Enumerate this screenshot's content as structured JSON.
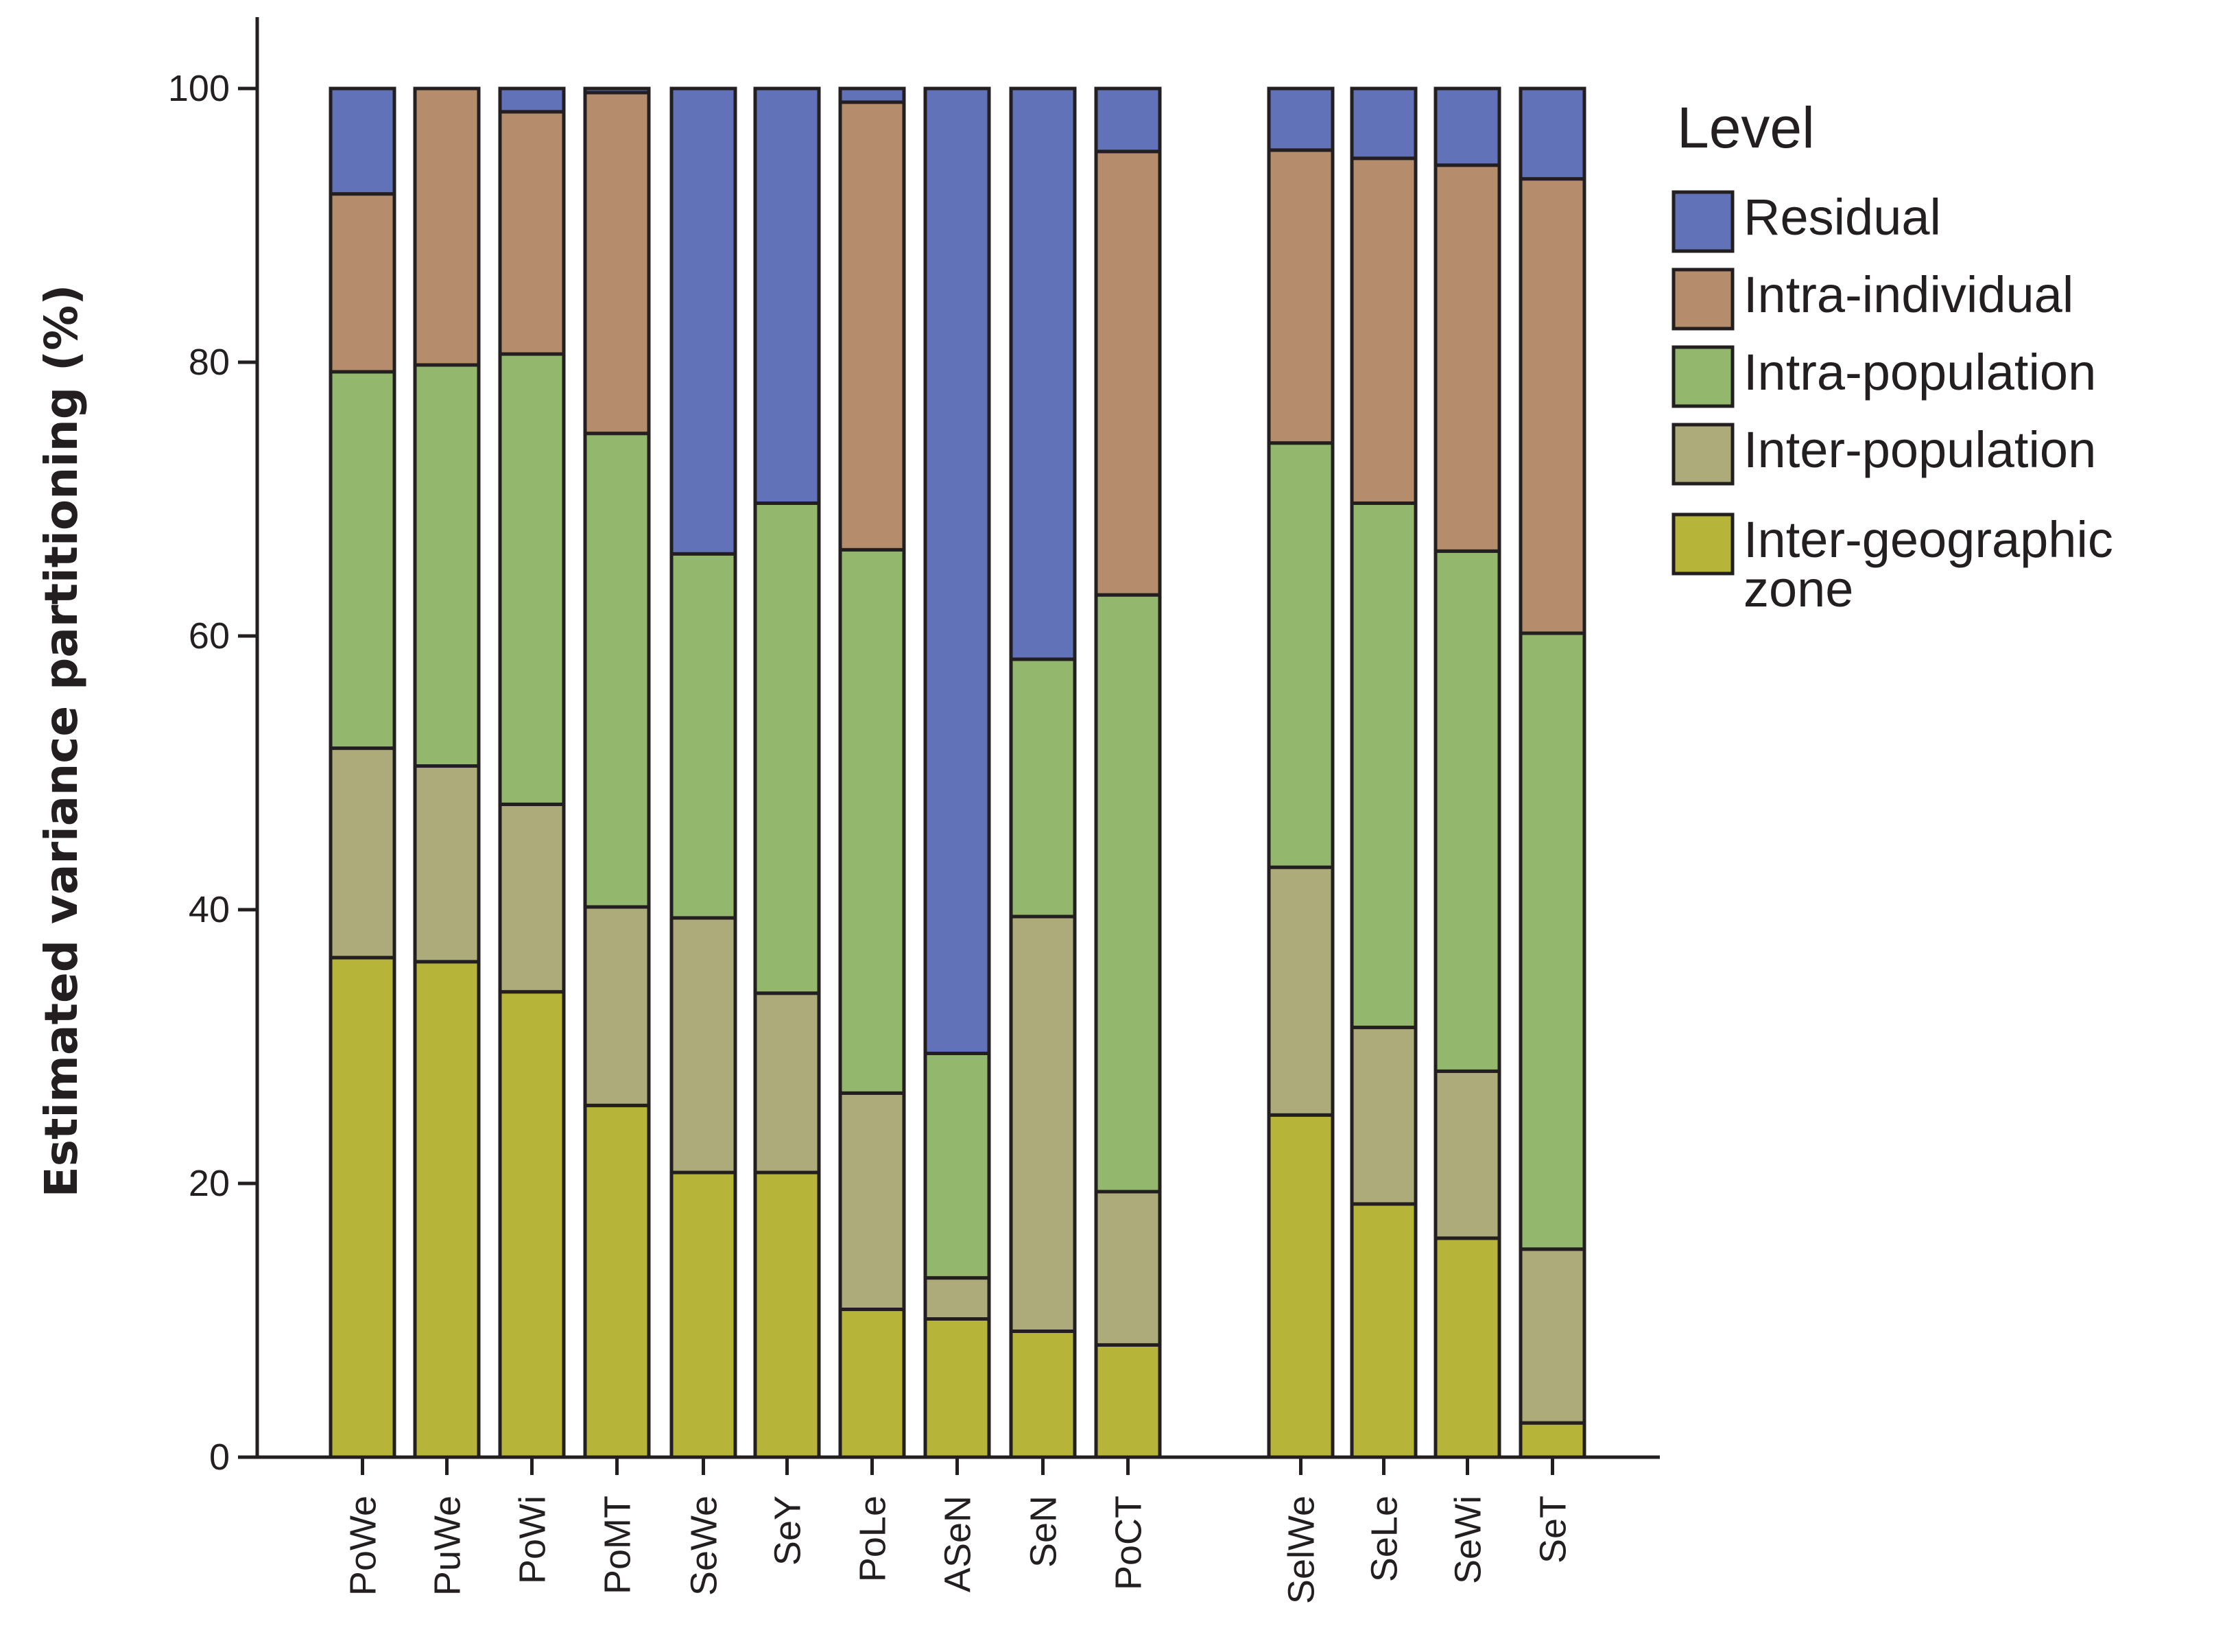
{
  "chart_data": {
    "type": "bar",
    "stacked": true,
    "title": "",
    "xlabel": "",
    "ylabel": "Estimated variance partitioning (%)",
    "ylim": [
      0,
      100
    ],
    "yticks": [
      "0",
      "20",
      "40",
      "60",
      "80",
      "100"
    ],
    "grid": false,
    "legend_position": "right",
    "legend_title": "Level",
    "categories": [
      "PoWe",
      "PuWe",
      "PoWi",
      "PoMT",
      "SeWe",
      "SeY",
      "PoLe",
      "ASeN",
      "SeN",
      "PoCT",
      "SelWe",
      "SeLe",
      "SeWi",
      "SeT"
    ],
    "group_break_after": "PoCT",
    "series": [
      {
        "name": "Inter-geographic zone",
        "legend_lines": [
          "Inter-geographic",
          "zone"
        ],
        "color": "#b7b43a",
        "values": [
          36.5,
          36.2,
          34.0,
          25.7,
          20.8,
          20.8,
          10.8,
          10.1,
          9.2,
          8.2,
          25.0,
          18.5,
          16.0,
          2.5
        ]
      },
      {
        "name": "Inter-population",
        "legend_lines": [
          "Inter-population"
        ],
        "color": "#adab7a",
        "values": [
          15.3,
          14.3,
          13.7,
          14.5,
          18.6,
          13.1,
          15.8,
          3.0,
          30.3,
          11.2,
          18.1,
          12.9,
          12.2,
          12.7
        ]
      },
      {
        "name": "Intra-population",
        "legend_lines": [
          "Intra-population"
        ],
        "color": "#93b76c",
        "values": [
          27.5,
          29.3,
          32.9,
          34.6,
          26.6,
          35.8,
          39.7,
          16.4,
          18.8,
          43.6,
          31.0,
          38.3,
          38.0,
          45.0
        ]
      },
      {
        "name": "Intra-individual",
        "legend_lines": [
          "Intra-individual"
        ],
        "color": "#b58c6c",
        "values": [
          13.0,
          20.2,
          17.7,
          24.9,
          0.0,
          0.0,
          32.7,
          0.0,
          0.0,
          32.4,
          21.4,
          25.2,
          28.2,
          33.2
        ]
      },
      {
        "name": "Residual",
        "legend_lines": [
          "Residual"
        ],
        "color": "#6272b9",
        "values": [
          7.7,
          0.0,
          1.7,
          0.3,
          34.0,
          30.3,
          1.0,
          70.5,
          41.7,
          4.6,
          4.5,
          5.1,
          5.6,
          6.6
        ]
      }
    ],
    "legend_order": [
      "Residual",
      "Intra-individual",
      "Intra-population",
      "Inter-population",
      "Inter-geographic zone"
    ]
  }
}
